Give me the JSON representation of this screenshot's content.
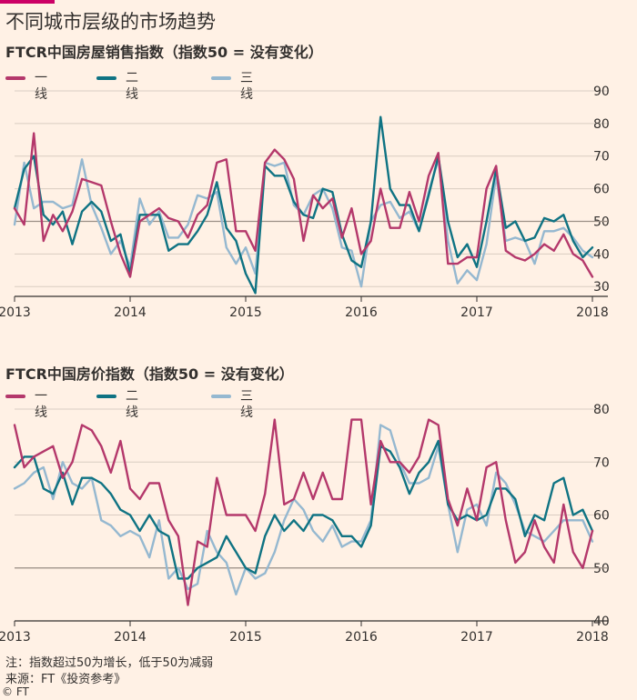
{
  "title": "不同城市层级的市场趋势",
  "colors": {
    "tier1": "#b4386b",
    "tier2": "#0f7383",
    "tier3": "#95b8d0",
    "axis": "#33302e",
    "grid": "#d9cdc2",
    "ref": "#9b8f86"
  },
  "legend": [
    "一线",
    "二线",
    "三线"
  ],
  "charts": [
    {
      "subtitle": "FTCR中国房屋销售指数（指数50 = 没有变化）",
      "chart_data": {
        "type": "line",
        "title": "FTCR中国房屋销售指数（指数50 = 没有变化）",
        "x_ticks": [
          "2013",
          "2014",
          "2015",
          "2016",
          "2017",
          "2018"
        ],
        "x_range": [
          2013.0,
          2018.0
        ],
        "y_ticks": [
          30,
          40,
          50,
          60,
          70,
          80,
          90
        ],
        "ylim": [
          27,
          90
        ],
        "reference_line": 50,
        "series": [
          {
            "name": "一线",
            "values": [
              54,
              49,
              77,
              44,
              52,
              47,
              53,
              63,
              62,
              61,
              50,
              40,
              33,
              50,
              52,
              54,
              51,
              50,
              45,
              52,
              55,
              68,
              69,
              47,
              47,
              41,
              68,
              72,
              69,
              63,
              44,
              58,
              54,
              57,
              45,
              54,
              40,
              44,
              60,
              48,
              48,
              59,
              50,
              64,
              71,
              37,
              37,
              39,
              39,
              60,
              67,
              41,
              39,
              38,
              40,
              43,
              41,
              46,
              40,
              38,
              33
            ]
          },
          {
            "name": "二线",
            "values": [
              54,
              66,
              70,
              52,
              49,
              53,
              43,
              53,
              56,
              53,
              44,
              46,
              34,
              52,
              52,
              52,
              41,
              43,
              43,
              47,
              52,
              62,
              48,
              44,
              34,
              28,
              67,
              64,
              64,
              56,
              52,
              51,
              60,
              59,
              46,
              38,
              36,
              50,
              82,
              60,
              55,
              55,
              47,
              58,
              70,
              50,
              39,
              43,
              36,
              50,
              66,
              48,
              50,
              44,
              45,
              51,
              50,
              52,
              44,
              39,
              42
            ]
          },
          {
            "name": "三线",
            "values": [
              49,
              68,
              54,
              56,
              56,
              54,
              55,
              69,
              55,
              48,
              40,
              44,
              36,
              57,
              49,
              53,
              45,
              45,
              49,
              58,
              57,
              59,
              42,
              37,
              42,
              34,
              68,
              67,
              68,
              55,
              52,
              58,
              60,
              54,
              42,
              41,
              30,
              50,
              55,
              56,
              51,
              53,
              47,
              59,
              69,
              44,
              31,
              35,
              32,
              43,
              64,
              44,
              45,
              44,
              37,
              47,
              47,
              48,
              45,
              41,
              39
            ]
          }
        ]
      }
    },
    {
      "subtitle": "FTCR中国房价指数（指数50 = 没有变化）",
      "chart_data": {
        "type": "line",
        "title": "FTCR中国房价指数（指数50 = 没有变化）",
        "x_ticks": [
          "2013",
          "2014",
          "2015",
          "2016",
          "2017",
          "2018"
        ],
        "x_range": [
          2013.0,
          2018.0
        ],
        "y_ticks": [
          40,
          50,
          60,
          70,
          80
        ],
        "ylim": [
          40,
          81
        ],
        "reference_line": 50,
        "series": [
          {
            "name": "一线",
            "values": [
              77,
              69,
              71,
              72,
              73,
              67,
              70,
              77,
              76,
              73,
              68,
              74,
              65,
              63,
              66,
              66,
              59,
              56,
              43,
              55,
              54,
              67,
              60,
              60,
              60,
              57,
              64,
              78,
              62,
              63,
              68,
              63,
              68,
              63,
              63,
              78,
              78,
              62,
              74,
              70,
              70,
              68,
              71,
              78,
              77,
              63,
              58,
              65,
              59,
              69,
              70,
              59,
              51,
              53,
              59,
              54,
              51,
              62,
              53,
              50,
              57
            ]
          },
          {
            "name": "二线",
            "values": [
              69,
              71,
              71,
              65,
              64,
              68,
              62,
              67,
              67,
              66,
              64,
              61,
              60,
              57,
              60,
              57,
              56,
              48,
              48,
              50,
              51,
              52,
              56,
              53,
              50,
              49,
              56,
              60,
              57,
              59,
              57,
              60,
              60,
              59,
              56,
              56,
              54,
              58,
              73,
              72,
              69,
              64,
              68,
              70,
              74,
              62,
              59,
              60,
              59,
              60,
              65,
              65,
              63,
              56,
              60,
              59,
              66,
              67,
              60,
              61,
              57
            ]
          },
          {
            "name": "三线",
            "values": [
              65,
              66,
              68,
              69,
              63,
              70,
              66,
              65,
              67,
              59,
              58,
              56,
              57,
              56,
              52,
              59,
              48,
              50,
              46,
              47,
              57,
              53,
              51,
              45,
              50,
              48,
              49,
              53,
              59,
              63,
              61,
              57,
              55,
              58,
              54,
              55,
              55,
              59,
              77,
              76,
              70,
              66,
              66,
              67,
              73,
              62,
              53,
              61,
              62,
              58,
              68,
              66,
              62,
              57,
              56,
              55,
              57,
              59,
              59,
              59,
              55
            ]
          }
        ]
      }
    }
  ],
  "notes": {
    "note": "注：指数超过50为增长，低于50为减弱",
    "source": "来源：FT《投资参考》",
    "copyright": "© FT"
  }
}
